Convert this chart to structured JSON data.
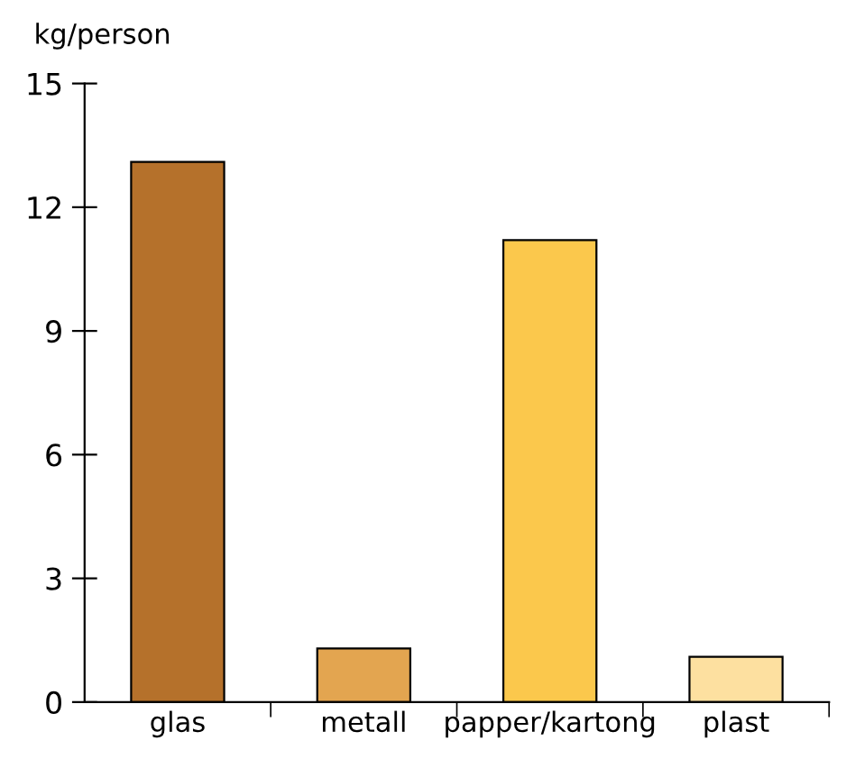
{
  "chart_data": {
    "type": "bar",
    "ylabel": "kg/person",
    "categories": [
      "glas",
      "metall",
      "papper/kartong",
      "plast"
    ],
    "values": [
      13.1,
      1.3,
      11.2,
      1.1
    ],
    "colors": [
      "#b5712b",
      "#e3a550",
      "#fbc84c",
      "#fde0a0"
    ],
    "ylim": [
      0,
      15
    ],
    "yticks": [
      0,
      3,
      6,
      9,
      12,
      15
    ],
    "grid": false,
    "legend": false
  }
}
